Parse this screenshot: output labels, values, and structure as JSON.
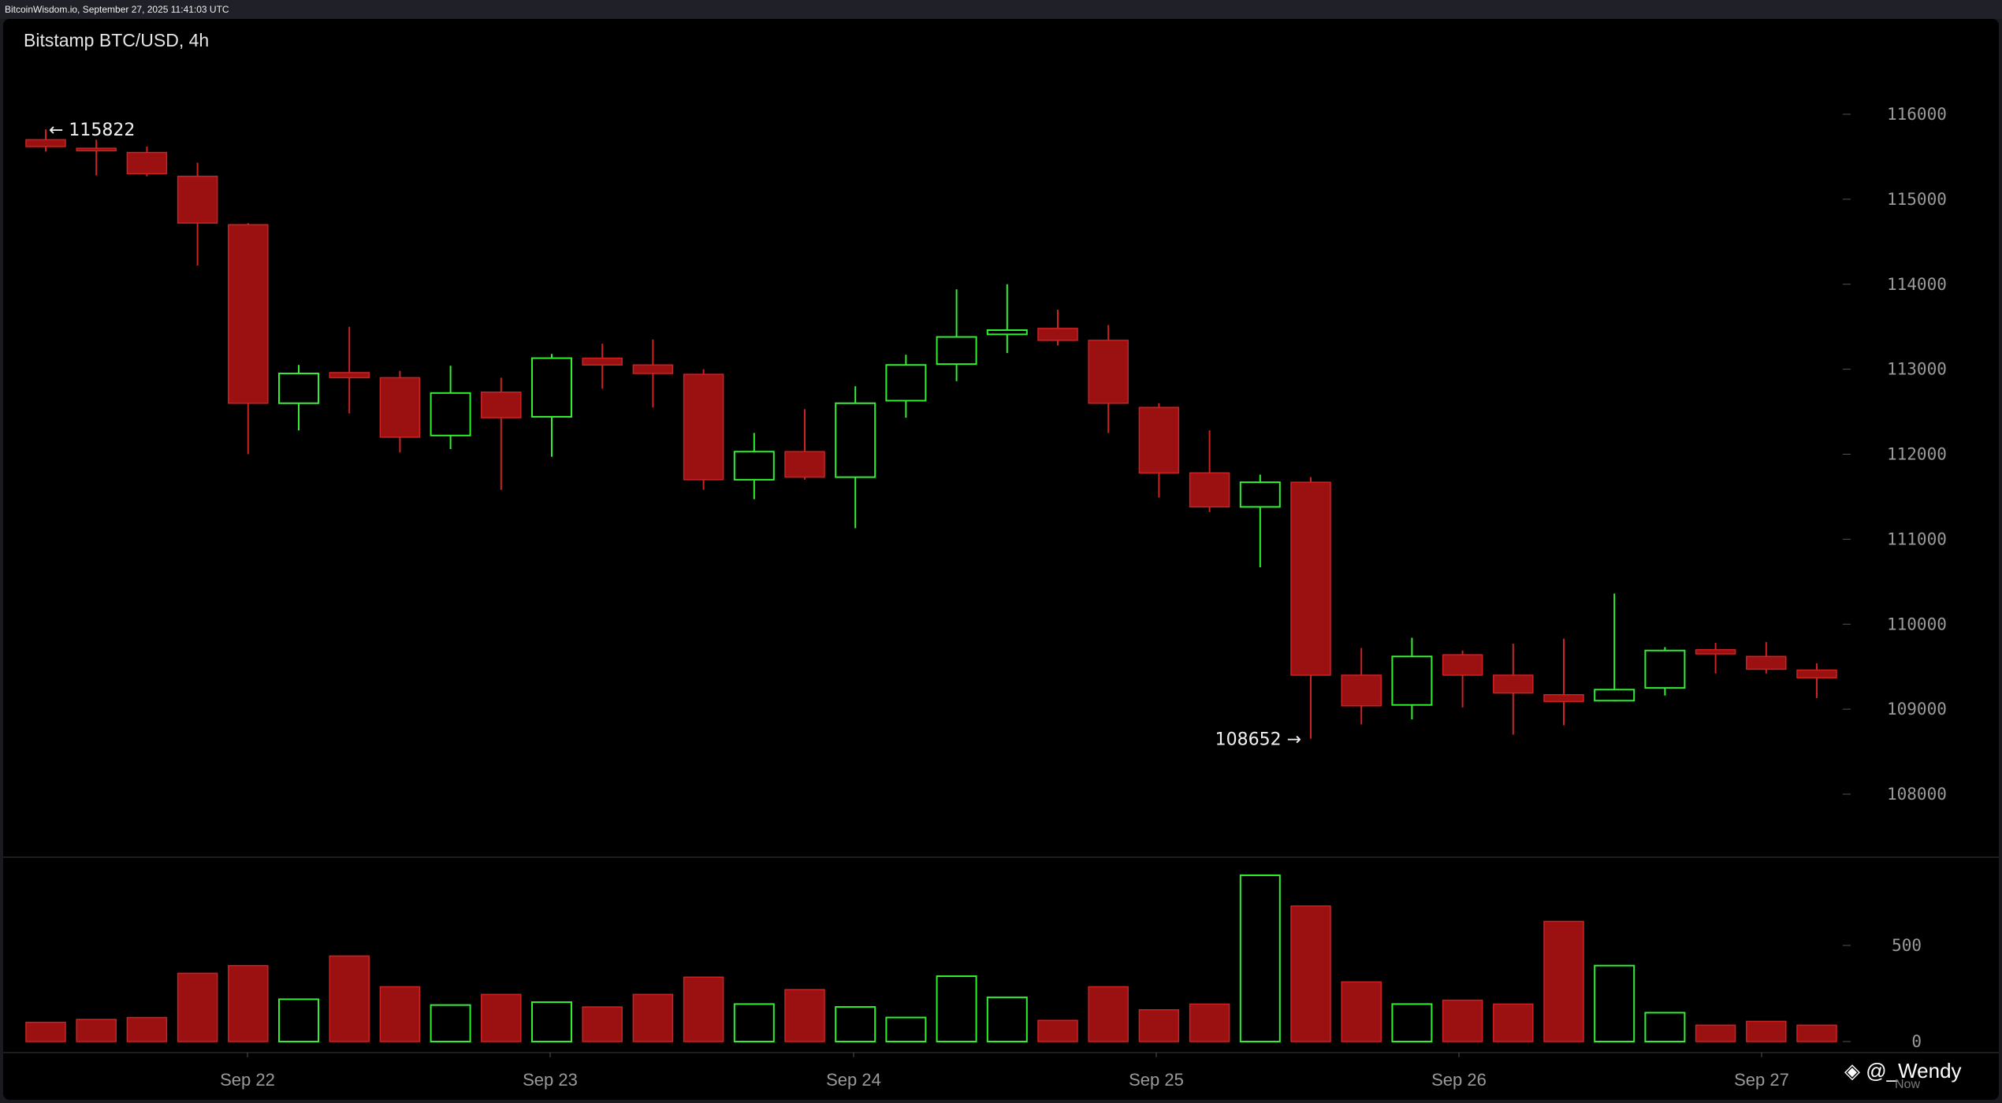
{
  "header": {
    "timestamp_text": "BitcoinWisdom.io, September 27, 2025 11:41:03 UTC"
  },
  "chart_title": "Bitstamp BTC/USD, 4h",
  "watermark": {
    "icon": "binance-diamond-icon",
    "text": "@_Wendy"
  },
  "now_label": "Now",
  "colors": {
    "up": "#33ee33",
    "down": "#9b1010",
    "down_outline": "#cc2222",
    "grid_text": "#9a9a9a",
    "background": "#000000"
  },
  "chart_data": [
    {
      "type": "candlestick",
      "title": "Bitstamp BTC/USD, 4h",
      "x_tick_labels": [
        "Sep 22",
        "Sep 23",
        "Sep 24",
        "Sep 25",
        "Sep 26",
        "Sep 27"
      ],
      "y_ticks": [
        108000,
        109000,
        110000,
        111000,
        112000,
        113000,
        114000,
        115000,
        116000
      ],
      "y_tick_labels": [
        "108000",
        "109000",
        "110000",
        "111000",
        "112000",
        "113000",
        "114000",
        "115000",
        "116000"
      ],
      "ylim": [
        107000,
        116800
      ],
      "annotations": [
        {
          "text": "← 115822",
          "value": 115822
        },
        {
          "text": "108652 →",
          "value": 108652
        }
      ],
      "candles": [
        {
          "o": 115700,
          "h": 115822,
          "l": 115560,
          "c": 115620
        },
        {
          "o": 115600,
          "h": 115700,
          "l": 115280,
          "c": 115570
        },
        {
          "o": 115550,
          "h": 115620,
          "l": 115270,
          "c": 115300
        },
        {
          "o": 115270,
          "h": 115430,
          "l": 114220,
          "c": 114720
        },
        {
          "o": 114700,
          "h": 114720,
          "l": 112000,
          "c": 112600
        },
        {
          "o": 112600,
          "h": 113050,
          "l": 112280,
          "c": 112950
        },
        {
          "o": 112960,
          "h": 113500,
          "l": 112480,
          "c": 112900
        },
        {
          "o": 112900,
          "h": 112980,
          "l": 112020,
          "c": 112200
        },
        {
          "o": 112220,
          "h": 113040,
          "l": 112060,
          "c": 112720
        },
        {
          "o": 112730,
          "h": 112900,
          "l": 111580,
          "c": 112430
        },
        {
          "o": 112440,
          "h": 113180,
          "l": 111970,
          "c": 113130
        },
        {
          "o": 113130,
          "h": 113300,
          "l": 112770,
          "c": 113050
        },
        {
          "o": 113050,
          "h": 113350,
          "l": 112550,
          "c": 112950
        },
        {
          "o": 112940,
          "h": 113000,
          "l": 111580,
          "c": 111700
        },
        {
          "o": 111700,
          "h": 112250,
          "l": 111470,
          "c": 112030
        },
        {
          "o": 112030,
          "h": 112530,
          "l": 111700,
          "c": 111730
        },
        {
          "o": 111730,
          "h": 112800,
          "l": 111130,
          "c": 112600
        },
        {
          "o": 112630,
          "h": 113170,
          "l": 112430,
          "c": 113050
        },
        {
          "o": 113060,
          "h": 113940,
          "l": 112860,
          "c": 113380
        },
        {
          "o": 113410,
          "h": 114000,
          "l": 113190,
          "c": 113460
        },
        {
          "o": 113480,
          "h": 113700,
          "l": 113280,
          "c": 113340
        },
        {
          "o": 113340,
          "h": 113520,
          "l": 112250,
          "c": 112600
        },
        {
          "o": 112550,
          "h": 112600,
          "l": 111490,
          "c": 111780
        },
        {
          "o": 111780,
          "h": 112280,
          "l": 111320,
          "c": 111380
        },
        {
          "o": 111380,
          "h": 111760,
          "l": 110670,
          "c": 111670
        },
        {
          "o": 111670,
          "h": 111730,
          "l": 108652,
          "c": 109400
        },
        {
          "o": 109400,
          "h": 109720,
          "l": 108820,
          "c": 109040
        },
        {
          "o": 109050,
          "h": 109840,
          "l": 108880,
          "c": 109620
        },
        {
          "o": 109640,
          "h": 109690,
          "l": 109020,
          "c": 109400
        },
        {
          "o": 109400,
          "h": 109770,
          "l": 108700,
          "c": 109190
        },
        {
          "o": 109170,
          "h": 109830,
          "l": 108810,
          "c": 109090
        },
        {
          "o": 109100,
          "h": 110360,
          "l": 109090,
          "c": 109230
        },
        {
          "o": 109250,
          "h": 109730,
          "l": 109160,
          "c": 109690
        },
        {
          "o": 109700,
          "h": 109780,
          "l": 109420,
          "c": 109650
        },
        {
          "o": 109620,
          "h": 109790,
          "l": 109420,
          "c": 109470
        },
        {
          "o": 109460,
          "h": 109540,
          "l": 109130,
          "c": 109370
        }
      ]
    },
    {
      "type": "bar",
      "title": "Volume",
      "y_ticks": [
        0,
        500
      ],
      "y_tick_labels": [
        "0",
        "500"
      ],
      "ylim": [
        0,
        950
      ],
      "values": [
        100,
        115,
        125,
        355,
        395,
        220,
        445,
        285,
        190,
        245,
        205,
        180,
        245,
        335,
        195,
        270,
        180,
        125,
        340,
        230,
        110,
        285,
        165,
        195,
        865,
        705,
        310,
        195,
        215,
        195,
        625,
        395,
        150,
        85,
        105,
        85
      ]
    }
  ]
}
